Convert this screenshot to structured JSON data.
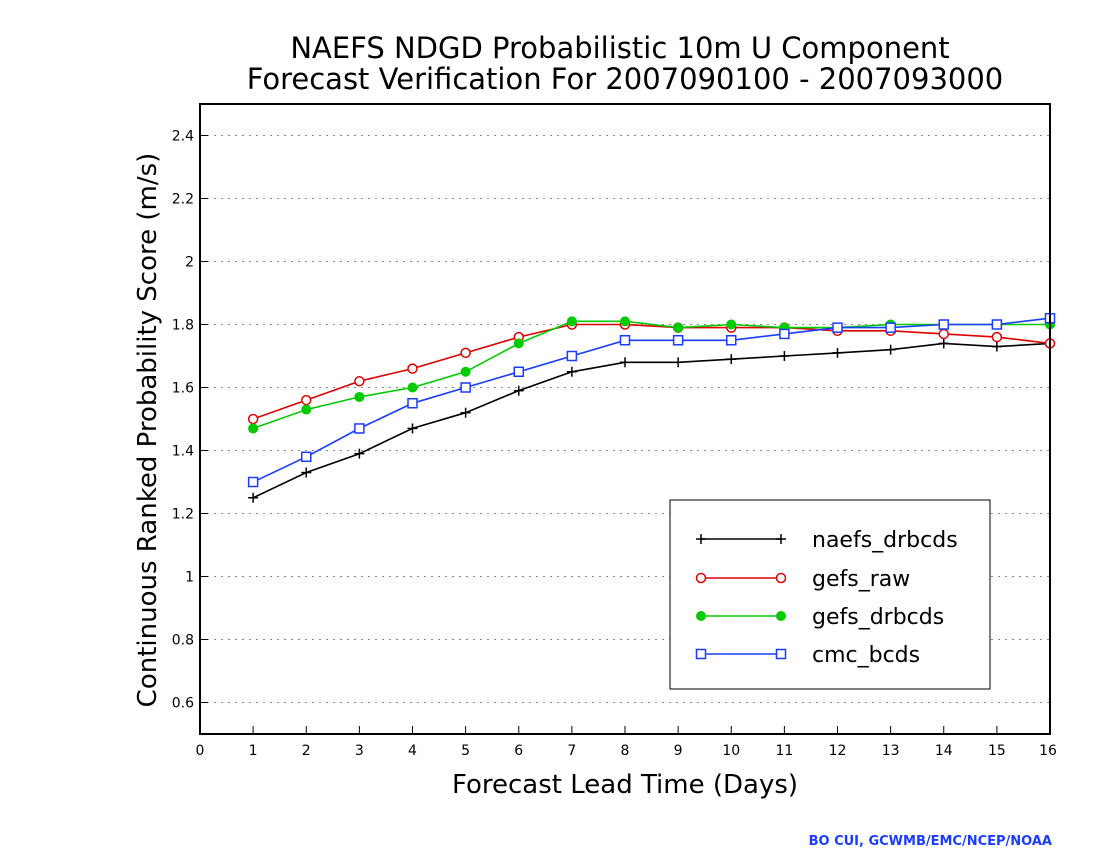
{
  "chart_data": {
    "type": "line",
    "title_line1": "NAEFS NDGD Probabilistic 10m U Component",
    "title_line2": "Forecast Verification For 2007090100 - 2007093000",
    "xlabel": "Forecast Lead Time (Days)",
    "ylabel": "Continuous Ranked Probability Score (m/s)",
    "xlim": [
      0,
      16
    ],
    "ylim": [
      0.5,
      2.5
    ],
    "x_ticks": [
      0,
      1,
      2,
      3,
      4,
      5,
      6,
      7,
      8,
      9,
      10,
      11,
      12,
      13,
      14,
      15,
      16
    ],
    "y_ticks": [
      0.6,
      0.8,
      1,
      1.2,
      1.4,
      1.6,
      1.8,
      2,
      2.2,
      2.4
    ],
    "y_tick_labels": [
      "0.6",
      "0.8",
      "1",
      "1.2",
      "1.4",
      "1.6",
      "1.8",
      "2",
      "2.2",
      "2.4"
    ],
    "grid": "horizontal dotted",
    "legend_position": "lower-right",
    "x": [
      1,
      2,
      3,
      4,
      5,
      6,
      7,
      8,
      9,
      10,
      11,
      12,
      13,
      14,
      15,
      16
    ],
    "series": [
      {
        "name": "naefs_drbcds",
        "color": "#000000",
        "marker": "plus",
        "values": [
          1.25,
          1.33,
          1.39,
          1.47,
          1.52,
          1.59,
          1.65,
          1.68,
          1.68,
          1.69,
          1.7,
          1.71,
          1.72,
          1.74,
          1.73,
          1.74
        ]
      },
      {
        "name": "gefs_raw",
        "color": "#e00000",
        "marker": "open-circle",
        "values": [
          1.5,
          1.56,
          1.62,
          1.66,
          1.71,
          1.76,
          1.8,
          1.8,
          1.79,
          1.79,
          1.79,
          1.78,
          1.78,
          1.77,
          1.76,
          1.74
        ]
      },
      {
        "name": "gefs_drbcds",
        "color": "#00cc00",
        "marker": "filled-circle",
        "values": [
          1.47,
          1.53,
          1.57,
          1.6,
          1.65,
          1.74,
          1.81,
          1.81,
          1.79,
          1.8,
          1.79,
          1.79,
          1.8,
          1.8,
          1.8,
          1.8
        ]
      },
      {
        "name": "cmc_bcds",
        "color": "#1a3cff",
        "marker": "open-square",
        "values": [
          1.3,
          1.38,
          1.47,
          1.55,
          1.6,
          1.65,
          1.7,
          1.75,
          1.75,
          1.75,
          1.77,
          1.79,
          1.79,
          1.8,
          1.8,
          1.82
        ]
      }
    ]
  },
  "credit": "BO CUI, GCWMB/EMC/NCEP/NOAA"
}
